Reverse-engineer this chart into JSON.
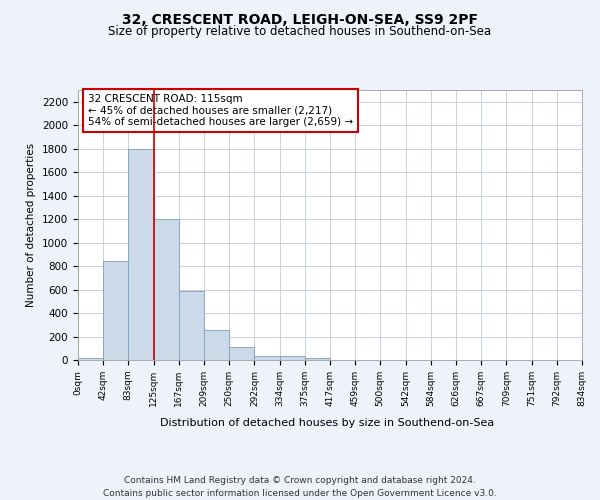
{
  "title1": "32, CRESCENT ROAD, LEIGH-ON-SEA, SS9 2PF",
  "title2": "Size of property relative to detached houses in Southend-on-Sea",
  "xlabel": "Distribution of detached houses by size in Southend-on-Sea",
  "ylabel": "Number of detached properties",
  "footnote1": "Contains HM Land Registry data © Crown copyright and database right 2024.",
  "footnote2": "Contains public sector information licensed under the Open Government Licence v3.0.",
  "annotation_title": "32 CRESCENT ROAD: 115sqm",
  "annotation_line1": "← 45% of detached houses are smaller (2,217)",
  "annotation_line2": "54% of semi-detached houses are larger (2,659) →",
  "property_size": 115,
  "bin_edges": [
    0,
    42,
    83,
    125,
    167,
    209,
    250,
    292,
    334,
    375,
    417,
    459,
    500,
    542,
    584,
    626,
    667,
    709,
    751,
    792,
    834
  ],
  "bar_heights": [
    20,
    840,
    1800,
    1200,
    590,
    255,
    115,
    35,
    30,
    20,
    0,
    0,
    0,
    0,
    0,
    0,
    0,
    0,
    0,
    0
  ],
  "bar_color": "#ccd9e8",
  "bar_edge_color": "#7aa0c0",
  "vline_color": "#cc0000",
  "vline_x": 125,
  "ylim": [
    0,
    2300
  ],
  "yticks": [
    0,
    200,
    400,
    600,
    800,
    1000,
    1200,
    1400,
    1600,
    1800,
    2000,
    2200
  ],
  "bg_color": "#eef2fa",
  "plot_bg": "#ffffff",
  "grid_color": "#c8cfe0",
  "annotation_box_color": "#ffffff",
  "annotation_box_edge": "#cc0000",
  "tick_labels": [
    "0sqm",
    "42sqm",
    "83sqm",
    "125sqm",
    "167sqm",
    "209sqm",
    "250sqm",
    "292sqm",
    "334sqm",
    "375sqm",
    "417sqm",
    "459sqm",
    "500sqm",
    "542sqm",
    "584sqm",
    "626sqm",
    "667sqm",
    "709sqm",
    "751sqm",
    "792sqm",
    "834sqm"
  ]
}
